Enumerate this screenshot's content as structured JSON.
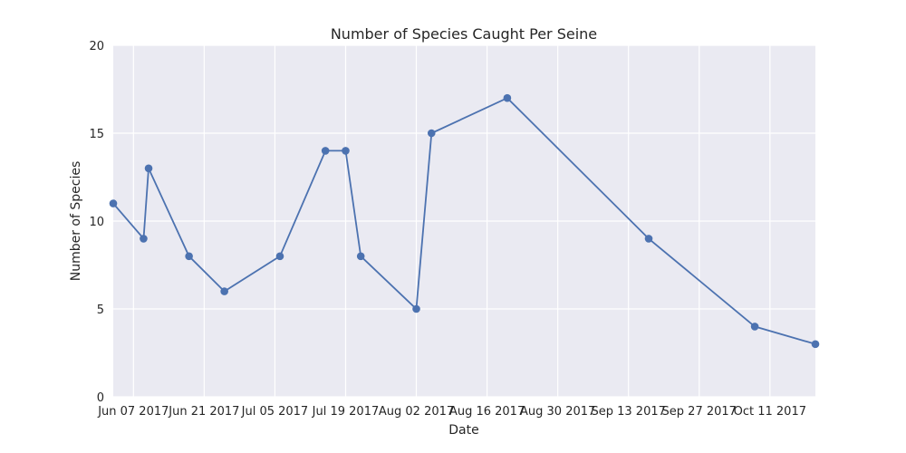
{
  "chart_data": {
    "type": "line",
    "title": "Number of Species Caught Per Seine",
    "xlabel": "Date",
    "ylabel": "Number of Species",
    "ylim": [
      0,
      20
    ],
    "xlim": [
      "2017-06-03",
      "2017-10-20"
    ],
    "x_ticks": [
      {
        "date": "2017-06-07",
        "label": "Jun 07 2017"
      },
      {
        "date": "2017-06-21",
        "label": "Jun 21 2017"
      },
      {
        "date": "2017-07-05",
        "label": "Jul 05 2017"
      },
      {
        "date": "2017-07-19",
        "label": "Jul 19 2017"
      },
      {
        "date": "2017-08-02",
        "label": "Aug 02 2017"
      },
      {
        "date": "2017-08-16",
        "label": "Aug 16 2017"
      },
      {
        "date": "2017-08-30",
        "label": "Aug 30 2017"
      },
      {
        "date": "2017-09-13",
        "label": "Sep 13 2017"
      },
      {
        "date": "2017-09-27",
        "label": "Sep 27 2017"
      },
      {
        "date": "2017-10-11",
        "label": "Oct 11 2017"
      }
    ],
    "y_ticks": [
      0,
      5,
      10,
      15,
      20
    ],
    "grid": true,
    "series": [
      {
        "color": "#4c72b0",
        "points": [
          {
            "x": "2017-06-03",
            "y": 11
          },
          {
            "x": "2017-06-09",
            "y": 9
          },
          {
            "x": "2017-06-10",
            "y": 13
          },
          {
            "x": "2017-06-18",
            "y": 8
          },
          {
            "x": "2017-06-25",
            "y": 6
          },
          {
            "x": "2017-07-06",
            "y": 8
          },
          {
            "x": "2017-07-15",
            "y": 14
          },
          {
            "x": "2017-07-19",
            "y": 14
          },
          {
            "x": "2017-07-22",
            "y": 8
          },
          {
            "x": "2017-08-02",
            "y": 5
          },
          {
            "x": "2017-08-05",
            "y": 15
          },
          {
            "x": "2017-08-20",
            "y": 17
          },
          {
            "x": "2017-09-17",
            "y": 9
          },
          {
            "x": "2017-10-08",
            "y": 4
          },
          {
            "x": "2017-10-20",
            "y": 3
          }
        ]
      }
    ],
    "colors": {
      "background": "#eaeaf2",
      "grid": "#ffffff",
      "line": "#4c72b0"
    }
  }
}
